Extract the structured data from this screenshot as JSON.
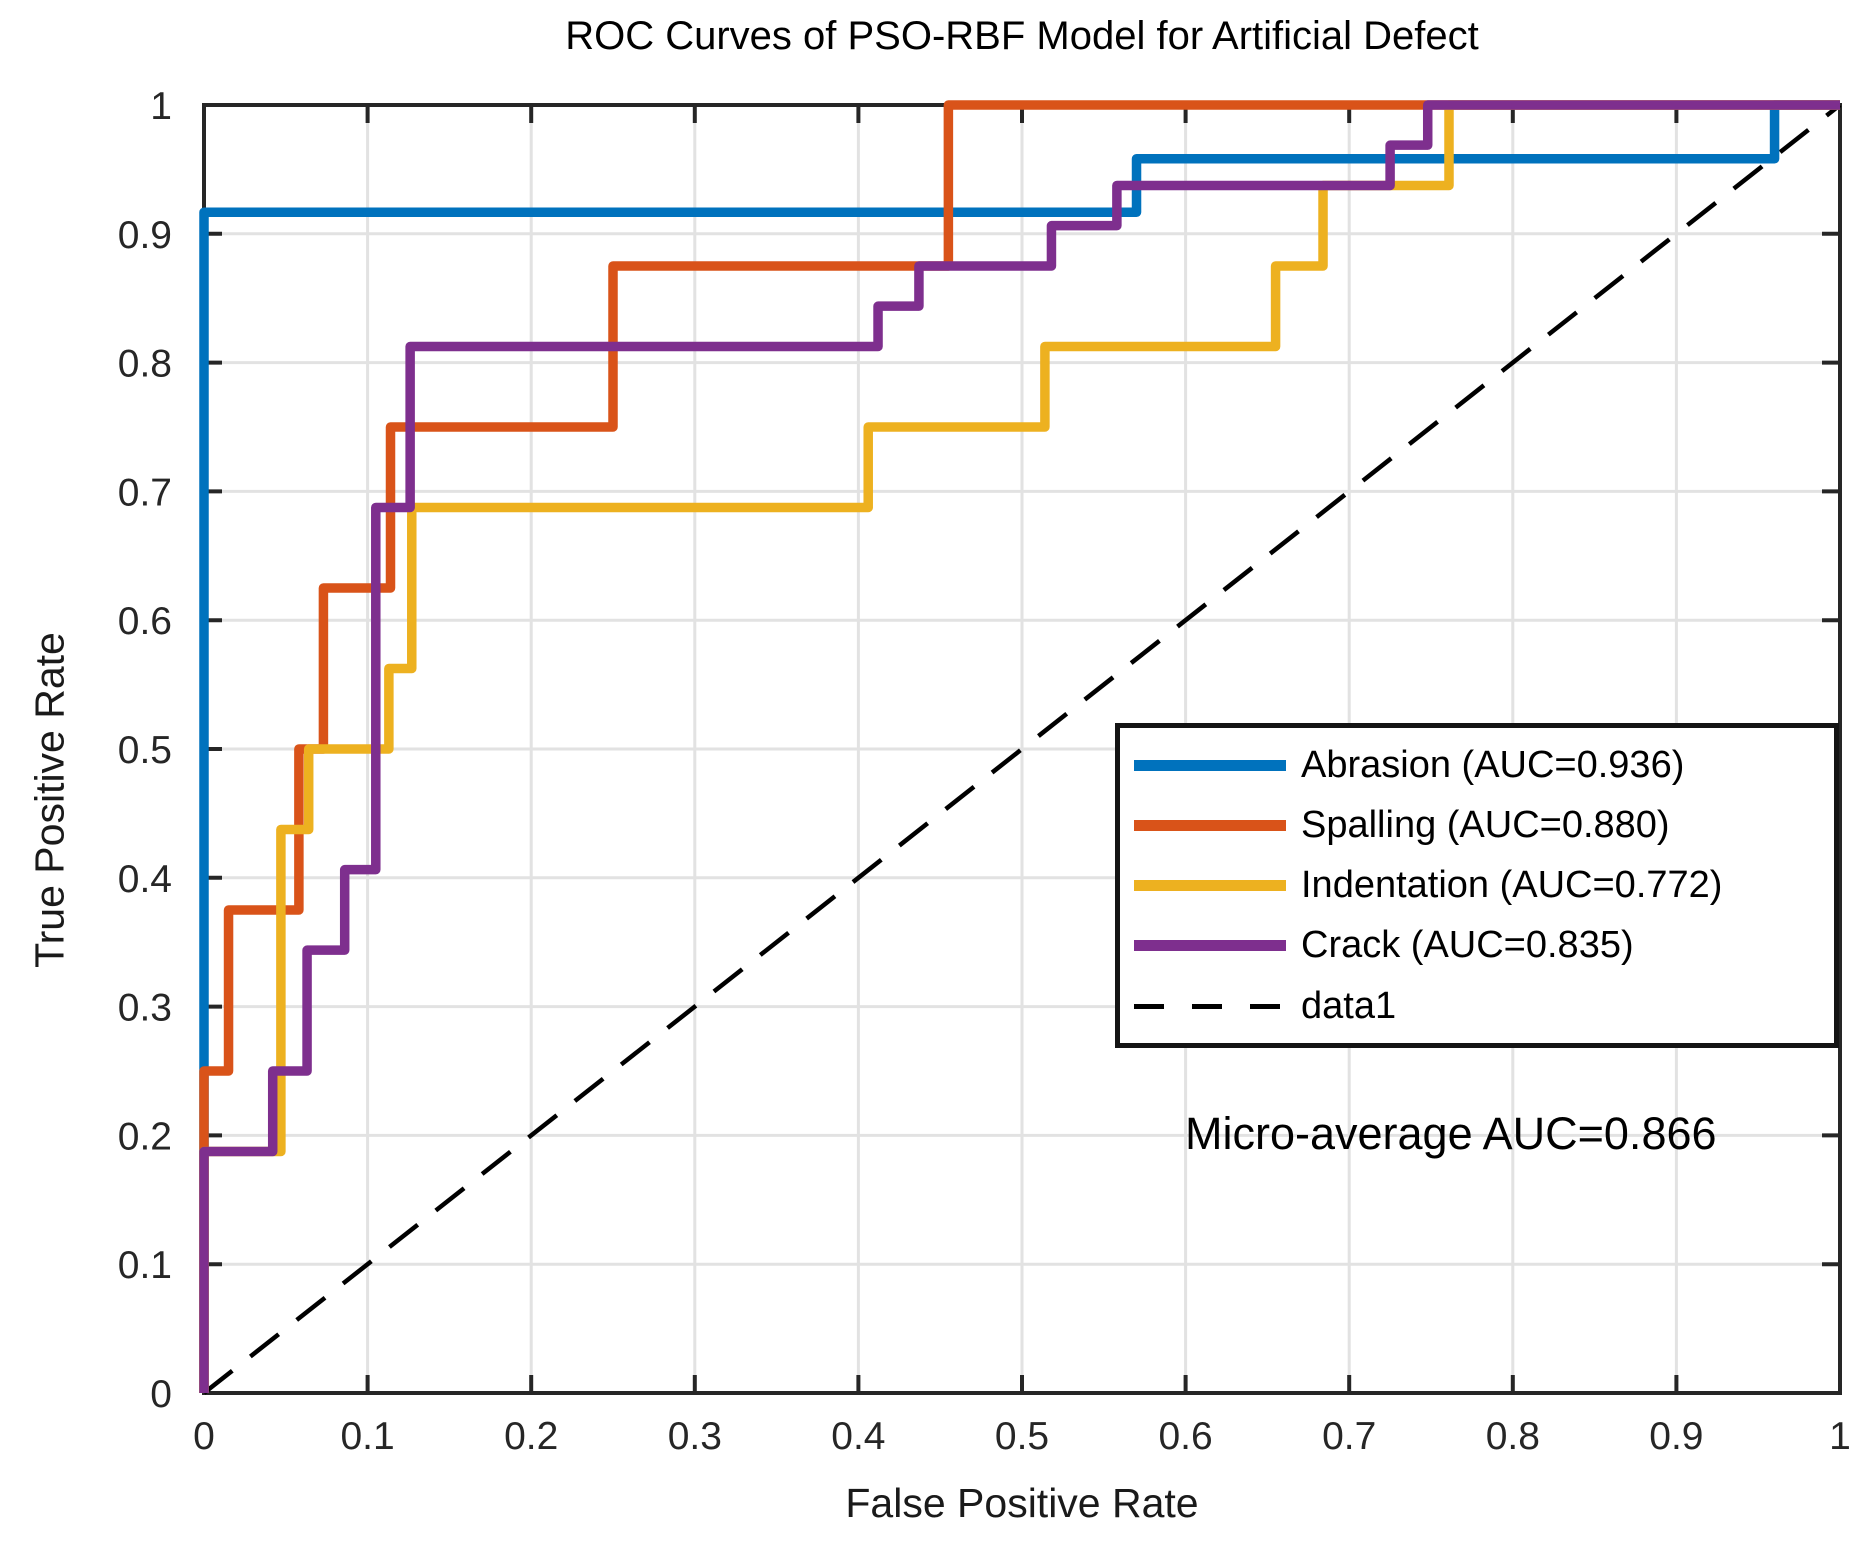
{
  "page": {
    "background": "#ffffff"
  },
  "chart_data": {
    "type": "line",
    "subtype": "roc-step-curves",
    "title": "ROC Curves of PSO-RBF Model for Artificial Defect",
    "xlabel": "False Positive Rate",
    "ylabel": "True Positive Rate",
    "xlim": [
      0,
      1
    ],
    "ylim": [
      0,
      1
    ],
    "xticks": [
      "0",
      "0.1",
      "0.2",
      "0.3",
      "0.4",
      "0.5",
      "0.6",
      "0.7",
      "0.8",
      "0.9",
      "1"
    ],
    "yticks": [
      "0",
      "0.1",
      "0.2",
      "0.3",
      "0.4",
      "0.5",
      "0.6",
      "0.7",
      "0.8",
      "0.9",
      "1"
    ],
    "grid": true,
    "grid_color": "#e2e2e2",
    "axis_color": "#262626",
    "legend_position": "right-middle",
    "annotation": "Micro-average AUC=0.866",
    "micro_average_auc": 0.866,
    "series": [
      {
        "name": "Abrasion (AUC=0.936)",
        "label": "Abrasion",
        "auc": 0.936,
        "color": "#0072BD",
        "points": [
          [
            0,
            0
          ],
          [
            0,
            0.9167
          ],
          [
            0.57,
            0.9167
          ],
          [
            0.57,
            0.9583
          ],
          [
            0.96,
            0.9583
          ],
          [
            0.96,
            1
          ],
          [
            1,
            1
          ]
        ]
      },
      {
        "name": "Spalling (AUC=0.880)",
        "label": "Spalling",
        "auc": 0.88,
        "color": "#D95319",
        "points": [
          [
            0,
            0
          ],
          [
            0,
            0.25
          ],
          [
            0.015,
            0.25
          ],
          [
            0.015,
            0.375
          ],
          [
            0.058,
            0.375
          ],
          [
            0.058,
            0.5
          ],
          [
            0.073,
            0.5
          ],
          [
            0.073,
            0.625
          ],
          [
            0.114,
            0.625
          ],
          [
            0.114,
            0.75
          ],
          [
            0.25,
            0.75
          ],
          [
            0.25,
            0.875
          ],
          [
            0.455,
            0.875
          ],
          [
            0.455,
            1
          ],
          [
            1,
            1
          ]
        ]
      },
      {
        "name": "Indentation (AUC=0.772)",
        "label": "Indentation",
        "auc": 0.772,
        "color": "#EDB120",
        "points": [
          [
            0,
            0
          ],
          [
            0,
            0.1875
          ],
          [
            0.047,
            0.1875
          ],
          [
            0.047,
            0.4375
          ],
          [
            0.064,
            0.4375
          ],
          [
            0.064,
            0.5
          ],
          [
            0.113,
            0.5
          ],
          [
            0.113,
            0.5625
          ],
          [
            0.127,
            0.5625
          ],
          [
            0.127,
            0.6875
          ],
          [
            0.406,
            0.6875
          ],
          [
            0.406,
            0.75
          ],
          [
            0.514,
            0.75
          ],
          [
            0.514,
            0.8125
          ],
          [
            0.655,
            0.8125
          ],
          [
            0.655,
            0.875
          ],
          [
            0.684,
            0.875
          ],
          [
            0.684,
            0.9375
          ],
          [
            0.761,
            0.9375
          ],
          [
            0.761,
            1
          ],
          [
            1,
            1
          ]
        ]
      },
      {
        "name": "Crack (AUC=0.835)",
        "label": "Crack",
        "auc": 0.835,
        "color": "#7E2F8E",
        "points": [
          [
            0,
            0
          ],
          [
            0,
            0.1875
          ],
          [
            0.042,
            0.1875
          ],
          [
            0.042,
            0.25
          ],
          [
            0.063,
            0.25
          ],
          [
            0.063,
            0.3438
          ],
          [
            0.086,
            0.3438
          ],
          [
            0.086,
            0.4063
          ],
          [
            0.105,
            0.4063
          ],
          [
            0.105,
            0.6875
          ],
          [
            0.126,
            0.6875
          ],
          [
            0.126,
            0.8125
          ],
          [
            0.412,
            0.8125
          ],
          [
            0.412,
            0.8438
          ],
          [
            0.437,
            0.8438
          ],
          [
            0.437,
            0.875
          ],
          [
            0.518,
            0.875
          ],
          [
            0.518,
            0.9063
          ],
          [
            0.558,
            0.9063
          ],
          [
            0.558,
            0.9375
          ],
          [
            0.725,
            0.9375
          ],
          [
            0.725,
            0.9688
          ],
          [
            0.748,
            0.9688
          ],
          [
            0.748,
            1
          ],
          [
            1,
            1
          ]
        ]
      }
    ],
    "reference": {
      "name": "data1",
      "color": "#000000",
      "style": "dashed",
      "points": [
        [
          0,
          0
        ],
        [
          1,
          1
        ]
      ]
    }
  }
}
